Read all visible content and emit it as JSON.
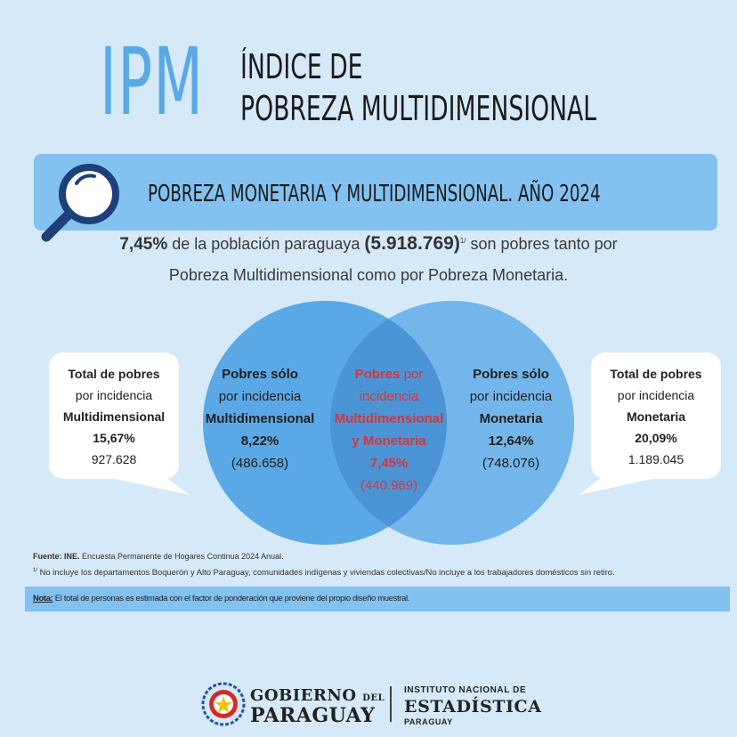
{
  "header": {
    "acronym": "IPM",
    "title_line1": "ÍNDICE DE",
    "title_line2": "POBREZA MULTIDIMENSIONAL"
  },
  "banner": {
    "text": "POBREZA MONETARIA Y MULTIDIMENSIONAL. AÑO 2024",
    "icon": "magnifier-icon"
  },
  "statement": {
    "pct": "7,45%",
    "text1": " de la población paraguaya ",
    "count": "(5.918.769)",
    "footnote_mark": "1/",
    "text2": " son pobres tanto por",
    "line2": "Pobreza Multidimensional como por Pobreza Monetaria."
  },
  "venn": {
    "left": {
      "title": "Pobres  sólo",
      "line2": "por incidencia",
      "category": "Multidimensional",
      "pct": "8,22%",
      "count": "(486.658)"
    },
    "middle": {
      "title_red": "Pobres",
      "title_dark": " por",
      "line2": "incidencia",
      "category1": "Multidimensional",
      "category2": "y Monetaria",
      "pct": "7,45%",
      "count": "(440.969)"
    },
    "right": {
      "title": "Pobres sólo",
      "line2": "por incidencia",
      "category": "Monetaria",
      "pct": "12,64%",
      "count": "(748.076)"
    },
    "colors": {
      "circle": "#5aa9e6",
      "overlap": "#4b95d6",
      "highlight": "#d4353c"
    }
  },
  "bubbles": {
    "left": {
      "title": "Total de pobres",
      "line2": "por incidencia",
      "category": "Multidimensional",
      "pct": "15,67%",
      "count": "927.628"
    },
    "right": {
      "title": "Total de pobres",
      "line2": "por incidencia",
      "category": "Monetaria",
      "pct": "20,09%",
      "count": "1.189.045"
    }
  },
  "footer": {
    "fuente_label": "Fuente: INE.",
    "fuente_text": " Encuesta Permanente de Hogares Continua 2024 Anual.",
    "footnote_mark": "1/",
    "footnote_text": " No incluye los departamentos Boquerón y Alto Paraguay, comunidades indígenas y viviendas colectivas/No incluye a los trabajadores domésticos sin retiro.",
    "nota_label": "Nota:",
    "nota_text": " El total de personas es estimada con el factor de ponderación que proviene del propio diseño muestral."
  },
  "logos": {
    "gob_line1": "GOBIERNO",
    "gob_del": "DEL",
    "gob_line2": "PARAGUAY",
    "ine_line1": "INSTITUTO NACIONAL DE",
    "ine_line2": "ESTADÍSTICA",
    "ine_line3": "PARAGUAY"
  }
}
